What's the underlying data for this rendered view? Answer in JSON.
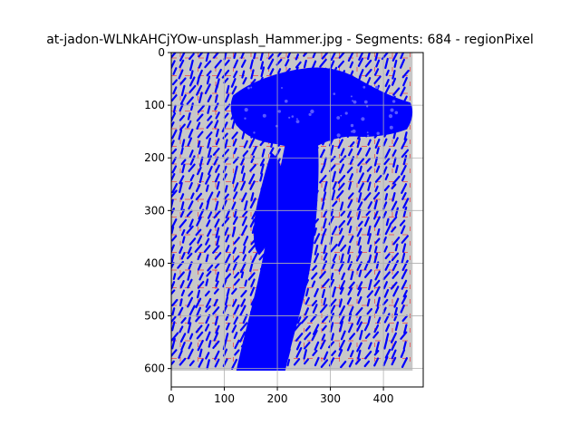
{
  "chart_data": {
    "type": "heatmap",
    "title": "at-jadon-WLNkAHCjYOw-unsplash_Hammer.jpg - Segments: 684 - regionPixel",
    "xlabel": "",
    "ylabel": "",
    "xlim": [
      0,
      475
    ],
    "ylim": [
      635,
      0
    ],
    "x_ticks": [
      0,
      100,
      200,
      300,
      400
    ],
    "y_ticks": [
      0,
      100,
      200,
      300,
      400,
      500,
      600
    ],
    "x_tick_labels": [
      "0",
      "100",
      "200",
      "300",
      "400"
    ],
    "y_tick_labels": [
      "0",
      "100",
      "200",
      "300",
      "400",
      "500",
      "600"
    ],
    "grid": true,
    "image_extent": {
      "x": [
        0,
        455
      ],
      "y": [
        0,
        605
      ]
    },
    "segments": 684,
    "colors": {
      "background": "#c8c8c8",
      "segment_outline": "#0000ff",
      "cell_border": "#ff0000",
      "grid": "#b0b0b0"
    }
  }
}
